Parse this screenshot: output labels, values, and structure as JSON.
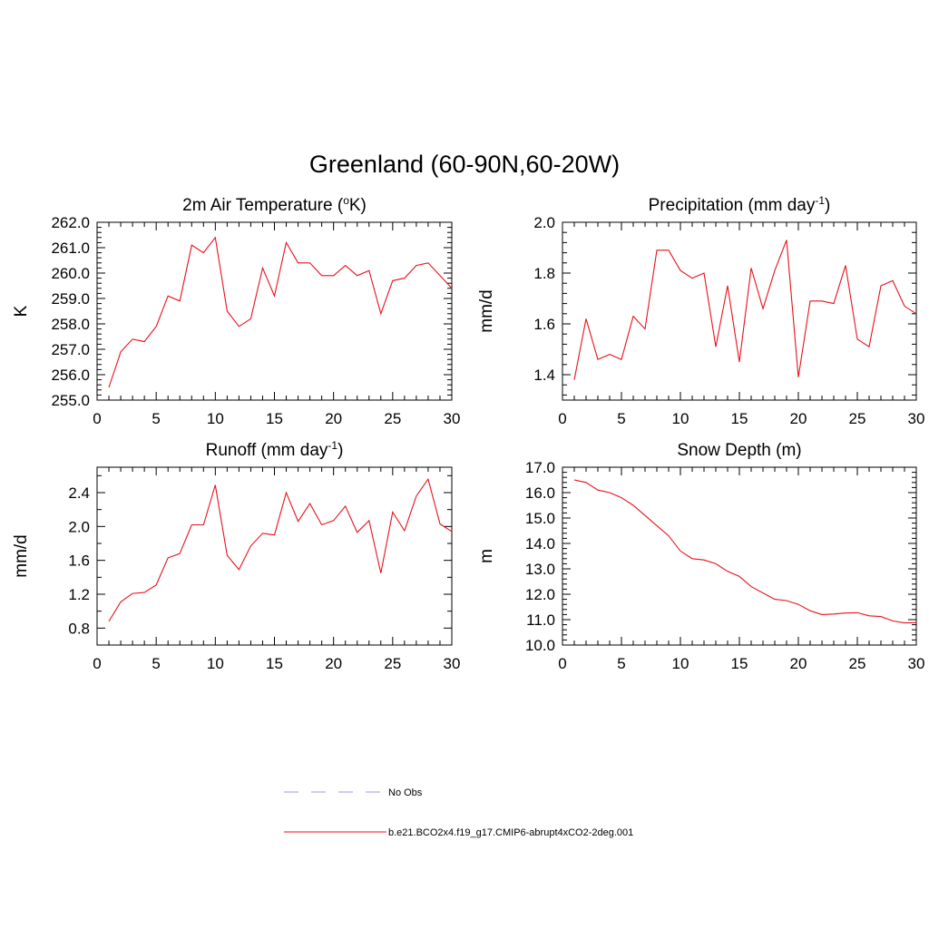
{
  "figure": {
    "title": "Greenland (60-90N,60-20W)",
    "line_color": "#e8111a",
    "obs_color": "#9999ee"
  },
  "legend": {
    "items": [
      {
        "label": "No Obs",
        "style": "dashed",
        "color": "#9999ee"
      },
      {
        "label": "b.e21.BCO2x4.f19_g17.CMIP6-abrupt4xCO2-2deg.001",
        "style": "solid",
        "color": "#e8111a"
      }
    ]
  },
  "chart_data": [
    {
      "type": "line",
      "title": "2m Air Temperature (",
      "title_sup": "o",
      "title_tail": "K)",
      "ylabel": "K",
      "xlabel": "",
      "xlim": [
        0,
        30
      ],
      "ylim": [
        255,
        262
      ],
      "xticks": [
        0,
        5,
        10,
        15,
        20,
        25,
        30
      ],
      "xtick_labels": [
        "0",
        "5",
        "10",
        "15",
        "20",
        "25",
        "30"
      ],
      "yticks": [
        255,
        256,
        257,
        258,
        259,
        260,
        261,
        262
      ],
      "ytick_labels": [
        "255.0",
        "256.0",
        "257.0",
        "258.0",
        "259.0",
        "260.0",
        "261.0",
        "262.0"
      ],
      "x": [
        1,
        2,
        3,
        4,
        5,
        6,
        7,
        8,
        9,
        10,
        11,
        12,
        13,
        14,
        15,
        16,
        17,
        18,
        19,
        20,
        21,
        22,
        23,
        24,
        25,
        26,
        27,
        28,
        29,
        30
      ],
      "series": [
        {
          "name": "b.e21.BCO2x4.f19_g17.CMIP6-abrupt4xCO2-2deg.001",
          "values": [
            255.5,
            256.9,
            257.4,
            257.3,
            257.9,
            259.1,
            258.9,
            261.1,
            260.8,
            261.4,
            258.5,
            257.9,
            258.2,
            260.2,
            259.1,
            261.2,
            260.4,
            260.4,
            259.9,
            259.9,
            260.3,
            259.9,
            260.1,
            258.4,
            259.7,
            259.8,
            260.3,
            260.4,
            259.9,
            259.4
          ]
        }
      ]
    },
    {
      "type": "line",
      "title": "Precipitation (mm day",
      "title_sup": "-1",
      "title_tail": ")",
      "ylabel": "mm/d",
      "xlabel": "",
      "xlim": [
        0,
        30
      ],
      "ylim": [
        1.3,
        2.0
      ],
      "xticks": [
        0,
        5,
        10,
        15,
        20,
        25,
        30
      ],
      "xtick_labels": [
        "0",
        "5",
        "10",
        "15",
        "20",
        "25",
        "30"
      ],
      "yticks": [
        1.4,
        1.6,
        1.8,
        2.0
      ],
      "ytick_labels": [
        "1.4",
        "1.6",
        "1.8",
        "2.0"
      ],
      "x": [
        1,
        2,
        3,
        4,
        5,
        6,
        7,
        8,
        9,
        10,
        11,
        12,
        13,
        14,
        15,
        16,
        17,
        18,
        19,
        20,
        21,
        22,
        23,
        24,
        25,
        26,
        27,
        28,
        29,
        30
      ],
      "series": [
        {
          "name": "b.e21.BCO2x4.f19_g17.CMIP6-abrupt4xCO2-2deg.001",
          "values": [
            1.38,
            1.62,
            1.46,
            1.48,
            1.46,
            1.63,
            1.58,
            1.89,
            1.89,
            1.81,
            1.78,
            1.8,
            1.51,
            1.75,
            1.45,
            1.82,
            1.66,
            1.81,
            1.93,
            1.39,
            1.69,
            1.69,
            1.68,
            1.83,
            1.54,
            1.51,
            1.75,
            1.77,
            1.67,
            1.64
          ]
        }
      ]
    },
    {
      "type": "line",
      "title": "Runoff (mm day",
      "title_sup": "-1",
      "title_tail": ")",
      "ylabel": "mm/d",
      "xlabel": "",
      "xlim": [
        0,
        30
      ],
      "ylim": [
        0.6,
        2.7
      ],
      "xticks": [
        0,
        5,
        10,
        15,
        20,
        25,
        30
      ],
      "xtick_labels": [
        "0",
        "5",
        "10",
        "15",
        "20",
        "25",
        "30"
      ],
      "yticks": [
        0.8,
        1.2,
        1.6,
        2.0,
        2.4
      ],
      "ytick_labels": [
        "0.8",
        "1.2",
        "1.6",
        "2.0",
        "2.4"
      ],
      "x": [
        1,
        2,
        3,
        4,
        5,
        6,
        7,
        8,
        9,
        10,
        11,
        12,
        13,
        14,
        15,
        16,
        17,
        18,
        19,
        20,
        21,
        22,
        23,
        24,
        25,
        26,
        27,
        28,
        29,
        30
      ],
      "series": [
        {
          "name": "b.e21.BCO2x4.f19_g17.CMIP6-abrupt4xCO2-2deg.001",
          "values": [
            0.88,
            1.11,
            1.21,
            1.22,
            1.31,
            1.63,
            1.68,
            2.02,
            2.02,
            2.49,
            1.66,
            1.49,
            1.77,
            1.92,
            1.9,
            2.4,
            2.06,
            2.27,
            2.02,
            2.07,
            2.24,
            1.93,
            2.07,
            1.45,
            2.17,
            1.95,
            2.36,
            2.56,
            2.03,
            1.94
          ]
        }
      ]
    },
    {
      "type": "line",
      "title": "Snow Depth (m)",
      "title_sup": "",
      "title_tail": "",
      "ylabel": "m",
      "xlabel": "",
      "xlim": [
        0,
        30
      ],
      "ylim": [
        10,
        17
      ],
      "xticks": [
        0,
        5,
        10,
        15,
        20,
        25,
        30
      ],
      "xtick_labels": [
        "0",
        "5",
        "10",
        "15",
        "20",
        "25",
        "30"
      ],
      "yticks": [
        10,
        11,
        12,
        13,
        14,
        15,
        16,
        17
      ],
      "ytick_labels": [
        "10.0",
        "11.0",
        "12.0",
        "13.0",
        "14.0",
        "15.0",
        "16.0",
        "17.0"
      ],
      "x": [
        1,
        2,
        3,
        4,
        5,
        6,
        7,
        8,
        9,
        10,
        11,
        12,
        13,
        14,
        15,
        16,
        17,
        18,
        19,
        20,
        21,
        22,
        23,
        24,
        25,
        26,
        27,
        28,
        29,
        30
      ],
      "series": [
        {
          "name": "b.e21.BCO2x4.f19_g17.CMIP6-abrupt4xCO2-2deg.001",
          "values": [
            16.5,
            16.4,
            16.1,
            16.0,
            15.8,
            15.5,
            15.1,
            14.7,
            14.3,
            13.7,
            13.4,
            13.35,
            13.2,
            12.9,
            12.7,
            12.3,
            12.05,
            11.8,
            11.75,
            11.6,
            11.35,
            11.2,
            11.22,
            11.26,
            11.27,
            11.15,
            11.12,
            10.95,
            10.87,
            10.88
          ]
        }
      ]
    }
  ]
}
